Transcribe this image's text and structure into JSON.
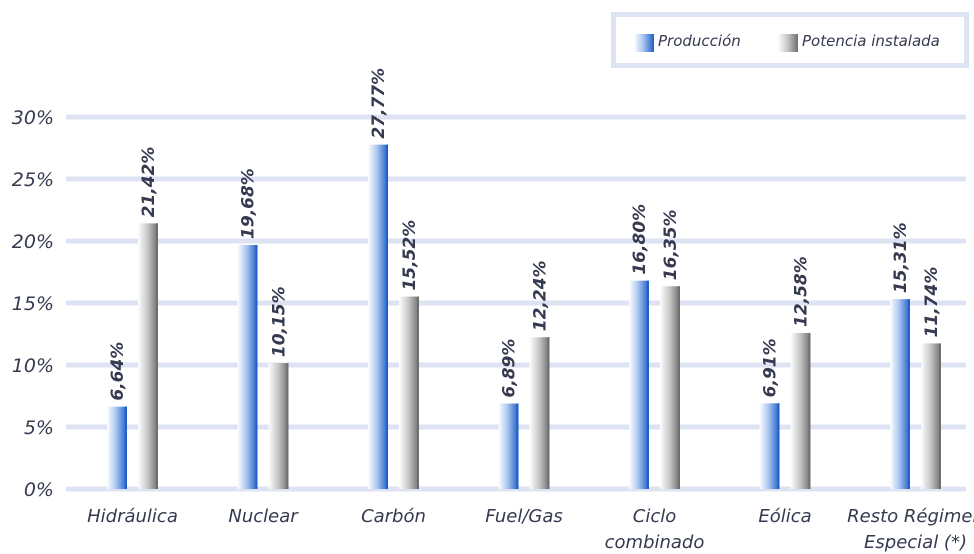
{
  "chart_data": {
    "type": "bar",
    "categories": [
      [
        "Hidráulica"
      ],
      [
        "Nuclear"
      ],
      [
        "Carbón"
      ],
      [
        "Fuel/Gas"
      ],
      [
        "Ciclo",
        "combinado"
      ],
      [
        "Eólica"
      ],
      [
        "Resto Régimen",
        "Especial (*)"
      ]
    ],
    "series": [
      {
        "name": "Producción",
        "values": [
          6.64,
          19.68,
          27.77,
          6.89,
          16.8,
          6.91,
          15.31
        ],
        "labels": [
          "6,64%",
          "19,68%",
          "27,77%",
          "6,89%",
          "16,80%",
          "6,91%",
          "15,31%"
        ],
        "color": "#2f6fd0"
      },
      {
        "name": "Potencia instalada",
        "values": [
          21.42,
          10.15,
          15.52,
          12.24,
          16.35,
          12.58,
          11.74
        ],
        "labels": [
          "21,42%",
          "10,15%",
          "15,52%",
          "12,24%",
          "16,35%",
          "12,58%",
          "11,74%"
        ],
        "color": "#8c8c8c"
      }
    ],
    "ylim": [
      0,
      30
    ],
    "yticks": [
      0,
      5,
      10,
      15,
      20,
      25,
      30
    ],
    "ytick_labels": [
      "0%",
      "5%",
      "10%",
      "15%",
      "20%",
      "25%",
      "30%"
    ],
    "grid": true,
    "legend_position": "top-right",
    "title": "",
    "xlabel": "",
    "ylabel": ""
  },
  "legend": {
    "items": [
      {
        "label": "Producción"
      },
      {
        "label": "Potencia instalada"
      }
    ]
  },
  "colors": {
    "grid": "#dde3f3",
    "axis_text": "#353a50",
    "bar_blue": "#2f6fd0",
    "bar_gray": "#8c8c8c"
  }
}
